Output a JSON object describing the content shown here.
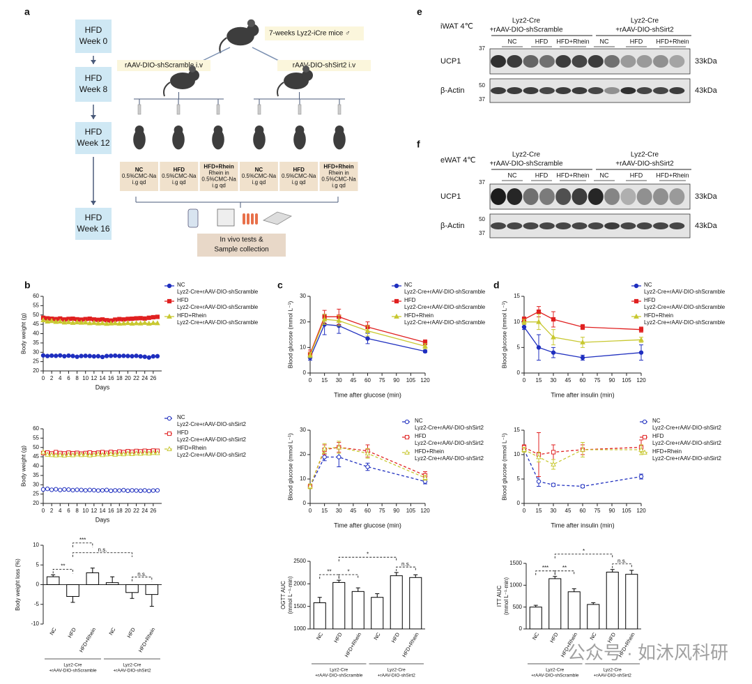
{
  "panel_labels": [
    "a",
    "b",
    "c",
    "d",
    "e",
    "f"
  ],
  "diagram": {
    "weeks": [
      [
        "HFD",
        "Week 0"
      ],
      [
        "HFD",
        "Week 8"
      ],
      [
        "HFD",
        "Week 12"
      ],
      [
        "HFD",
        "Week 16"
      ]
    ],
    "mice": "7-weeks Lyz2-iCre mice ♂",
    "injections": [
      "rAAV-DIO-shScramble i.v",
      "rAAV-DIO-shSirt2 i.v"
    ],
    "groups": [
      [
        "NC",
        "0.5%CMC-Na",
        "i.g qd"
      ],
      [
        "HFD",
        "0.5%CMC-Na",
        "i.g qd"
      ],
      [
        "HFD+Rhein",
        "Rhein in",
        "0.5%CMC-Na",
        "i.g qd"
      ],
      [
        "NC",
        "0.5%CMC-Na",
        "i.g qd"
      ],
      [
        "HFD",
        "0.5%CMC-Na",
        "i.g qd"
      ],
      [
        "HFD+Rhein",
        "Rhein in",
        "0.5%CMC-Na",
        "i.g qd"
      ]
    ],
    "collection": [
      "In vivo tests &",
      "Sample collection"
    ]
  },
  "blots": [
    {
      "title": "iWAT 4℃",
      "groups": [
        [
          "Lyz2-Cre",
          "+rAAV-DIO-shScramble"
        ],
        [
          "Lyz2-Cre",
          "+rAAV-DIO-shSirt2"
        ]
      ],
      "lanes": [
        "NC",
        "HFD",
        "HFD+Rhein",
        "NC",
        "HFD",
        "HFD+Rhein"
      ],
      "proteins": [
        "UCP1",
        "β-Actin"
      ],
      "sizes": [
        "33kDa",
        "43kDa"
      ],
      "markers": [
        "37",
        "50",
        "37"
      ]
    },
    {
      "title": "eWAT 4℃",
      "groups": [
        [
          "Lyz2-Cre",
          "+rAAV-DIO-shScramble"
        ],
        [
          "Lyz2-Cre",
          "+rAAV-DIO-shSirt2"
        ]
      ],
      "lanes": [
        "NC",
        "HFD",
        "HFD+Rhein",
        "NC",
        "HFD",
        "HFD+Rhein"
      ],
      "proteins": [
        "UCP1",
        "β-Actin"
      ],
      "sizes": [
        "33kDa",
        "43kDa"
      ],
      "markers": [
        "37",
        "50",
        "37"
      ]
    }
  ],
  "chart_data": [
    {
      "type": "line",
      "xlabel": "Days",
      "ylabel": "Body weight (g)",
      "xlim": [
        0,
        28
      ],
      "xticks": [
        0,
        2,
        4,
        6,
        8,
        10,
        12,
        14,
        16,
        18,
        20,
        22,
        24,
        26
      ],
      "ylim": [
        20,
        60
      ],
      "yticks": [
        20,
        25,
        30,
        35,
        40,
        45,
        50,
        55,
        60
      ],
      "line_style": "solid",
      "open_markers": false,
      "x": [
        0,
        1,
        2,
        3,
        4,
        5,
        6,
        7,
        8,
        9,
        10,
        11,
        12,
        13,
        14,
        15,
        16,
        17,
        18,
        19,
        20,
        21,
        22,
        23,
        24,
        25,
        26,
        27
      ],
      "series": [
        {
          "name": "NC",
          "group": "Lyz2-Cre+rAAV-DIO-shScramble",
          "color": "#1f2fbf",
          "marker": "circle",
          "values": [
            28.3,
            28.0,
            28.2,
            28.1,
            28.3,
            27.9,
            28.2,
            28.0,
            27.6,
            28.0,
            28.1,
            28.0,
            27.8,
            27.9,
            27.5,
            28.0,
            28.1,
            28.2,
            28.0,
            28.1,
            28.0,
            27.9,
            28.1,
            27.8,
            27.6,
            27.2,
            27.8,
            27.9
          ]
        },
        {
          "name": "HFD",
          "group": "Lyz2-Cre+rAAV-DIO-shScramble",
          "color": "#e02020",
          "marker": "square",
          "values": [
            48.5,
            48.2,
            48.0,
            47.8,
            48.1,
            47.6,
            47.9,
            48.0,
            47.7,
            47.5,
            47.8,
            48.0,
            47.6,
            47.4,
            47.6,
            47.2,
            47.0,
            47.5,
            47.8,
            47.6,
            47.9,
            48.0,
            48.2,
            48.3,
            48.1,
            48.5,
            48.8,
            49.0
          ]
        },
        {
          "name": "HFD+Rhein",
          "group": "Lyz2-Cre+rAAV-DIO-shScramble",
          "color": "#c8c830",
          "marker": "triangle",
          "values": [
            47.2,
            46.5,
            46.8,
            46.3,
            46.5,
            46.0,
            46.2,
            45.8,
            46.1,
            45.9,
            46.0,
            45.6,
            45.8,
            45.5,
            45.6,
            45.3,
            45.5,
            45.6,
            45.4,
            45.5,
            45.7,
            45.4,
            45.6,
            45.5,
            45.8,
            45.4,
            45.7,
            45.6
          ]
        }
      ]
    },
    {
      "type": "line",
      "xlabel": "Days",
      "ylabel": "Body weight (g)",
      "xlim": [
        0,
        28
      ],
      "xticks": [
        0,
        2,
        4,
        6,
        8,
        10,
        12,
        14,
        16,
        18,
        20,
        22,
        24,
        26
      ],
      "ylim": [
        20,
        60
      ],
      "yticks": [
        20,
        25,
        30,
        35,
        40,
        45,
        50,
        55,
        60
      ],
      "line_style": "dashed",
      "open_markers": true,
      "x": [
        0,
        1,
        2,
        3,
        4,
        5,
        6,
        7,
        8,
        9,
        10,
        11,
        12,
        13,
        14,
        15,
        16,
        17,
        18,
        19,
        20,
        21,
        22,
        23,
        24,
        25,
        26,
        27
      ],
      "series": [
        {
          "name": "NC",
          "group": "Lyz2-Cre+rAAV-DIO-shSirt2",
          "color": "#1f2fbf",
          "marker": "circle",
          "values": [
            27.5,
            27.8,
            27.3,
            27.6,
            27.2,
            27.5,
            27.4,
            27.1,
            27.3,
            27.2,
            27.0,
            27.2,
            27.1,
            26.9,
            27.0,
            27.2,
            26.8,
            27.0,
            26.9,
            27.1,
            26.8,
            27.0,
            26.9,
            26.8,
            27.0,
            26.7,
            26.9,
            27.0
          ]
        },
        {
          "name": "HFD",
          "group": "Lyz2-Cre+rAAV-DIO-shSirt2",
          "color": "#e02020",
          "marker": "square",
          "values": [
            47.0,
            47.3,
            46.8,
            47.5,
            47.0,
            46.8,
            47.2,
            46.9,
            47.1,
            46.7,
            47.0,
            47.3,
            46.9,
            47.2,
            47.5,
            47.1,
            47.6,
            47.3,
            47.8,
            47.5,
            48.0,
            47.7,
            48.1,
            47.9,
            48.2,
            48.0,
            48.3,
            48.2
          ]
        },
        {
          "name": "HFD+Rhein",
          "group": "Lyz2-Cre+rAAV-DIO-shSirt2",
          "color": "#c8c830",
          "marker": "triangle",
          "values": [
            47.5,
            46.2,
            46.0,
            45.8,
            46.0,
            45.7,
            46.1,
            45.9,
            46.3,
            46.0,
            46.2,
            45.8,
            46.1,
            46.4,
            46.0,
            46.3,
            46.5,
            46.2,
            46.6,
            46.4,
            46.8,
            46.5,
            46.9,
            46.7,
            47.0,
            46.8,
            47.1,
            47.0
          ]
        }
      ]
    },
    {
      "type": "bar",
      "ylabel": [
        "Body weight loss (%)"
      ],
      "ylim": [
        -10,
        10
      ],
      "yticks": [
        -10,
        -5,
        0,
        5,
        10
      ],
      "color": "#ffffff",
      "edgecolor": "#000000",
      "categories": [
        "NC",
        "HFD",
        "HFD+Rhein",
        "NC",
        "HFD",
        "HFD+Rhein"
      ],
      "values": [
        2,
        -3,
        3,
        0.5,
        -2,
        -2.5
      ],
      "errors": [
        0.5,
        1.5,
        1.2,
        1.5,
        1.5,
        3
      ],
      "groups": [
        [
          "Lyz2-Cre",
          "+rAAV-DIO-shScramble"
        ],
        [
          "Lyz2-Cre",
          "+rAAV-DIO-shSirt2"
        ]
      ],
      "significance": [
        "**",
        "***",
        "n.s.",
        "n.s."
      ]
    },
    {
      "type": "line",
      "xlabel": "Time after glucose (min)",
      "ylabel": "Blood glucose (mmol L⁻¹)",
      "xlim": [
        0,
        120
      ],
      "xticks": [
        0,
        15,
        30,
        45,
        60,
        75,
        90,
        105,
        120
      ],
      "ylim": [
        0,
        30
      ],
      "yticks": [
        0,
        10,
        20,
        30
      ],
      "line_style": "solid",
      "open_markers": false,
      "x": [
        0,
        15,
        30,
        60,
        120
      ],
      "series": [
        {
          "name": "NC",
          "group": "Lyz2-Cre+rAAV-DIO-shScramble",
          "color": "#1f2fbf",
          "marker": "circle",
          "values": [
            6,
            19,
            18.5,
            13.5,
            8.5
          ],
          "errors": [
            1,
            4,
            3,
            2,
            0.5
          ]
        },
        {
          "name": "HFD",
          "group": "Lyz2-Cre+rAAV-DIO-shScramble",
          "color": "#e02020",
          "marker": "square",
          "values": [
            7.5,
            22,
            22,
            18,
            12
          ],
          "errors": [
            1.5,
            2.5,
            3,
            2,
            1
          ]
        },
        {
          "name": "HFD+Rhein",
          "group": "Lyz2-Cre+rAAV-DIO-shScramble",
          "color": "#c8c830",
          "marker": "triangle",
          "values": [
            7,
            21,
            20.5,
            16.5,
            10.5
          ],
          "errors": [
            1,
            2,
            2,
            2,
            1
          ]
        }
      ]
    },
    {
      "type": "line",
      "xlabel": "Time after glucose (min)",
      "ylabel": "Blood glucose (mmol L⁻¹)",
      "xlim": [
        0,
        120
      ],
      "xticks": [
        0,
        15,
        30,
        45,
        60,
        75,
        90,
        105,
        120
      ],
      "ylim": [
        0,
        30
      ],
      "yticks": [
        0,
        10,
        20,
        30
      ],
      "line_style": "dashed",
      "open_markers": true,
      "x": [
        0,
        15,
        30,
        60,
        120
      ],
      "series": [
        {
          "name": "NC",
          "group": "Lyz2-Cre+rAAV-DIO-shSirt2",
          "color": "#1f2fbf",
          "marker": "circle",
          "values": [
            7,
            19,
            19,
            15,
            9
          ],
          "errors": [
            1,
            1.5,
            4,
            1.5,
            1
          ]
        },
        {
          "name": "HFD",
          "group": "Lyz2-Cre+rAAV-DIO-shSirt2",
          "color": "#e02020",
          "marker": "square",
          "values": [
            7,
            22,
            23,
            21.5,
            11.5
          ],
          "errors": [
            1,
            2,
            2,
            2.5,
            1.5
          ]
        },
        {
          "name": "HFD+Rhein",
          "group": "Lyz2-Cre+rAAV-DIO-shSirt2",
          "color": "#c8c830",
          "marker": "triangle",
          "values": [
            7,
            22.5,
            23,
            20.5,
            10.5
          ],
          "errors": [
            1,
            2,
            2.5,
            2,
            1
          ]
        }
      ]
    },
    {
      "type": "bar",
      "ylabel": [
        "OGTT AUC",
        "(mmol L⁻¹·min)"
      ],
      "ylim": [
        1000,
        2500
      ],
      "yticks": [
        1000,
        1500,
        2000,
        2500
      ],
      "color": "#ffffff",
      "edgecolor": "#000000",
      "categories": [
        "NC",
        "HFD",
        "HFD+Rhein",
        "NC",
        "HFD",
        "HFD+Rhein"
      ],
      "values": [
        1580,
        2030,
        1830,
        1700,
        2180,
        2140
      ],
      "errors": [
        120,
        50,
        80,
        80,
        70,
        60
      ],
      "groups": [
        [
          "Lyz2-Cre",
          "+rAAV-DIO-shScramble"
        ],
        [
          "Lyz2-Cre",
          "+rAAV-DIO-shSirt2"
        ]
      ],
      "significance": [
        "**",
        "*",
        "*",
        "n.s."
      ]
    },
    {
      "type": "line",
      "xlabel": "Time after insulin (min)",
      "ylabel": "Blood glucose (mmol L⁻¹)",
      "xlim": [
        0,
        120
      ],
      "xticks": [
        0,
        15,
        30,
        45,
        60,
        75,
        90,
        105,
        120
      ],
      "ylim": [
        0,
        15
      ],
      "yticks": [
        0,
        5,
        10,
        15
      ],
      "line_style": "solid",
      "open_markers": false,
      "x": [
        0,
        15,
        30,
        60,
        120
      ],
      "series": [
        {
          "name": "NC",
          "group": "Lyz2-Cre+rAAV-DIO-shScramble",
          "color": "#1f2fbf",
          "marker": "circle",
          "values": [
            9,
            5,
            4,
            3,
            4
          ],
          "errors": [
            0.5,
            2.5,
            1,
            0.5,
            1.5
          ]
        },
        {
          "name": "HFD",
          "group": "Lyz2-Cre+rAAV-DIO-shScramble",
          "color": "#e02020",
          "marker": "square",
          "values": [
            10.5,
            12,
            10.5,
            9,
            8.5
          ],
          "errors": [
            0.5,
            1,
            1.5,
            0.5,
            0.5
          ]
        },
        {
          "name": "HFD+Rhein",
          "group": "Lyz2-Cre+rAAV-DIO-shScramble",
          "color": "#c8c830",
          "marker": "triangle",
          "values": [
            10,
            10,
            7,
            6,
            6.5
          ],
          "errors": [
            0.5,
            1.5,
            1.5,
            1,
            0.5
          ]
        }
      ]
    },
    {
      "type": "line",
      "xlabel": "Time after insulin (min)",
      "ylabel": "Blood glucose (mmol L⁻¹)",
      "xlim": [
        0,
        120
      ],
      "xticks": [
        0,
        15,
        30,
        45,
        60,
        75,
        90,
        105,
        120
      ],
      "ylim": [
        0,
        15
      ],
      "yticks": [
        0,
        5,
        10,
        15
      ],
      "line_style": "dashed",
      "open_markers": true,
      "x": [
        0,
        15,
        30,
        60,
        120
      ],
      "series": [
        {
          "name": "NC",
          "group": "Lyz2-Cre+rAAV-DIO-shSirt2",
          "color": "#1f2fbf",
          "marker": "circle",
          "values": [
            11,
            4.5,
            3.8,
            3.5,
            5.5
          ],
          "errors": [
            0.5,
            1,
            0.3,
            0.3,
            0.5
          ]
        },
        {
          "name": "HFD",
          "group": "Lyz2-Cre+rAAV-DIO-shSirt2",
          "color": "#e02020",
          "marker": "square",
          "values": [
            11.5,
            10,
            10.5,
            11,
            11.5
          ],
          "errors": [
            0.5,
            4.5,
            1.5,
            1,
            1.5
          ]
        },
        {
          "name": "HFD+Rhein",
          "group": "Lyz2-Cre+rAAV-DIO-shSirt2",
          "color": "#c8c830",
          "marker": "triangle",
          "values": [
            11,
            9.5,
            8,
            11,
            11
          ],
          "errors": [
            0.5,
            1,
            1,
            1.5,
            1
          ]
        }
      ]
    },
    {
      "type": "bar",
      "ylabel": [
        "ITT AUC",
        "(mmol L⁻¹·min)"
      ],
      "ylim": [
        0,
        1500
      ],
      "yticks": [
        0,
        500,
        1000,
        1500
      ],
      "color": "#ffffff",
      "edgecolor": "#000000",
      "categories": [
        "NC",
        "HFD",
        "HFD+Rhein",
        "NC",
        "HFD",
        "HFD+Rhein"
      ],
      "values": [
        500,
        1150,
        850,
        560,
        1300,
        1250
      ],
      "errors": [
        40,
        50,
        70,
        40,
        60,
        90
      ],
      "groups": [
        [
          "Lyz2-Cre",
          "+rAAV-DIO-shScramble"
        ],
        [
          "Lyz2-Cre",
          "+rAAV-DIO-shSirt2"
        ]
      ],
      "significance": [
        "***",
        "**",
        "*",
        "n.s."
      ]
    }
  ],
  "watermark": "公众号 · 如沐风科研"
}
